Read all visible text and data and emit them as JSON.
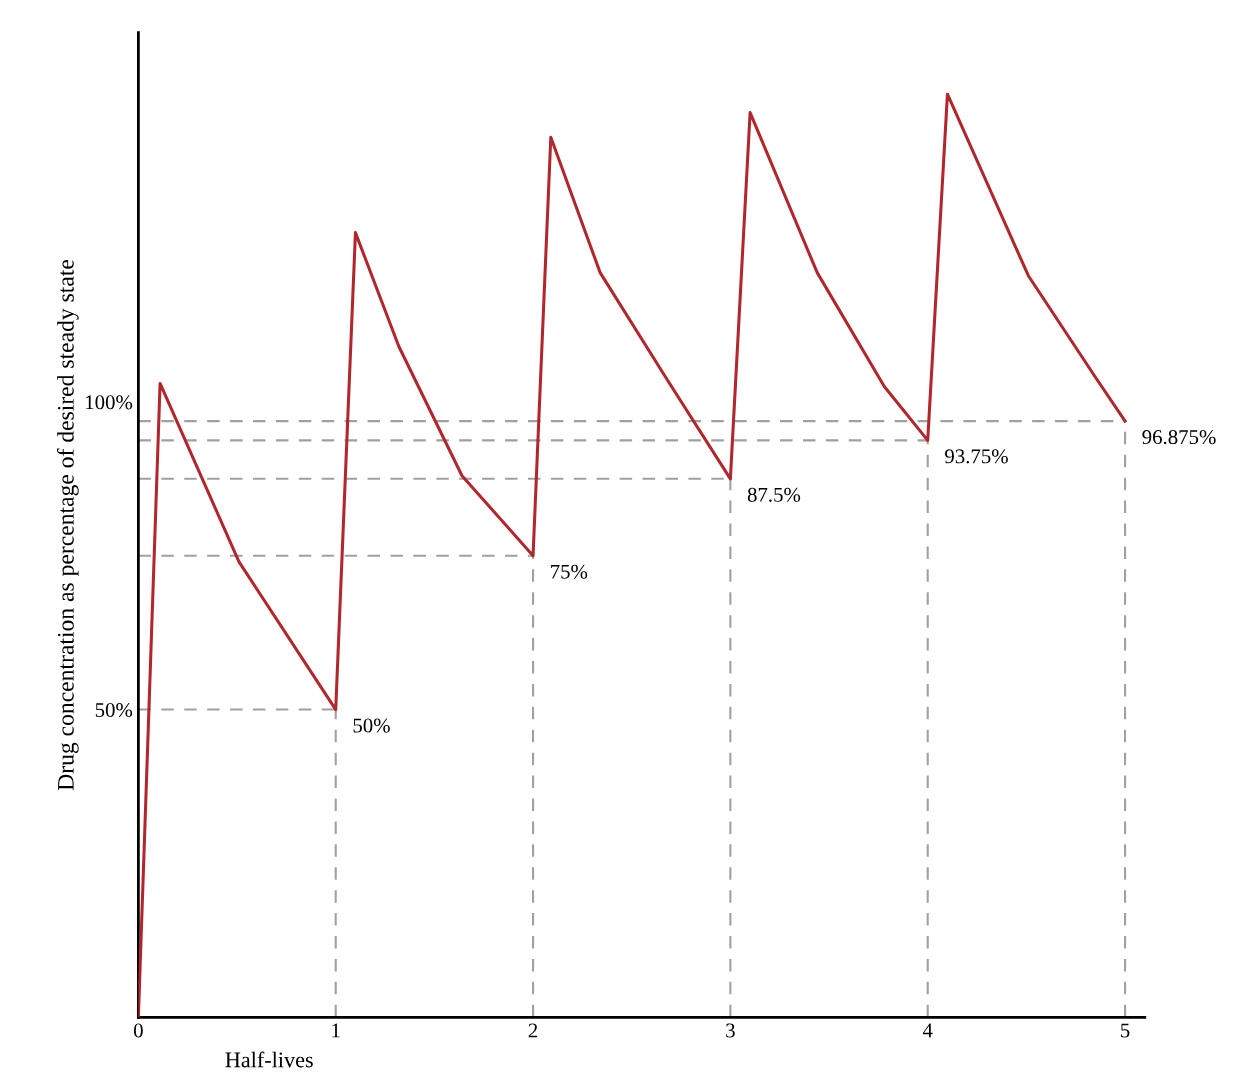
{
  "chart_data": {
    "type": "line",
    "xlabel": "Half-lives",
    "ylabel": "Drug concentration as percentage of desired steady state",
    "xlim": [
      0,
      5.1
    ],
    "xticks": [
      0,
      1,
      2,
      3,
      4,
      5
    ],
    "ylim": [
      0,
      160
    ],
    "yticks": [
      {
        "value": 50,
        "label": "50%"
      },
      {
        "value": 100,
        "label": "100%"
      }
    ],
    "series": [
      {
        "color": "#b0282d",
        "x": [
          0,
          0.11,
          0.51,
          1,
          1.1,
          1.32,
          1.64,
          2,
          2.09,
          2.34,
          2.68,
          3,
          3.1,
          3.44,
          3.78,
          4,
          4.1,
          4.51,
          4.85,
          5
        ],
        "values": [
          0,
          103,
          74,
          50,
          127.5,
          109,
          88,
          75,
          143,
          121,
          103.6,
          87.5,
          147,
          121,
          102.5,
          93.75,
          150,
          120.5,
          104,
          96.875
        ],
        "value_labels": [
          null,
          null,
          null,
          "50%",
          null,
          null,
          null,
          "75%",
          null,
          null,
          null,
          "87.5%",
          null,
          null,
          null,
          "93.75%",
          null,
          null,
          null,
          "96.875%"
        ]
      }
    ],
    "ref_lines": [
      {
        "axis": "y",
        "value": 50,
        "color": "#a0a0a0",
        "line_style": "dashed"
      },
      {
        "axis": "y",
        "value": 75,
        "color": "#a0a0a0",
        "line_style": "dashed"
      },
      {
        "axis": "y",
        "value": 87.5,
        "color": "#a0a0a0",
        "line_style": "dashed"
      },
      {
        "axis": "y",
        "value": 93.75,
        "color": "#a0a0a0",
        "line_style": "dashed"
      },
      {
        "axis": "y",
        "value": 96.875,
        "color": "#a0a0a0",
        "line_style": "dashed"
      },
      {
        "axis": "x",
        "value": 1,
        "color": "#a0a0a0",
        "line_style": "dashed"
      },
      {
        "axis": "x",
        "value": 2,
        "color": "#a0a0a0",
        "line_style": "dashed"
      },
      {
        "axis": "x",
        "value": 3,
        "color": "#a0a0a0",
        "line_style": "dashed"
      },
      {
        "axis": "x",
        "value": 4,
        "color": "#a0a0a0",
        "line_style": "dashed"
      },
      {
        "axis": "x",
        "value": 5,
        "color": "#a0a0a0",
        "line_style": "dashed"
      }
    ],
    "grid": false,
    "legend": false,
    "marker": "none",
    "line_style": "solid"
  }
}
